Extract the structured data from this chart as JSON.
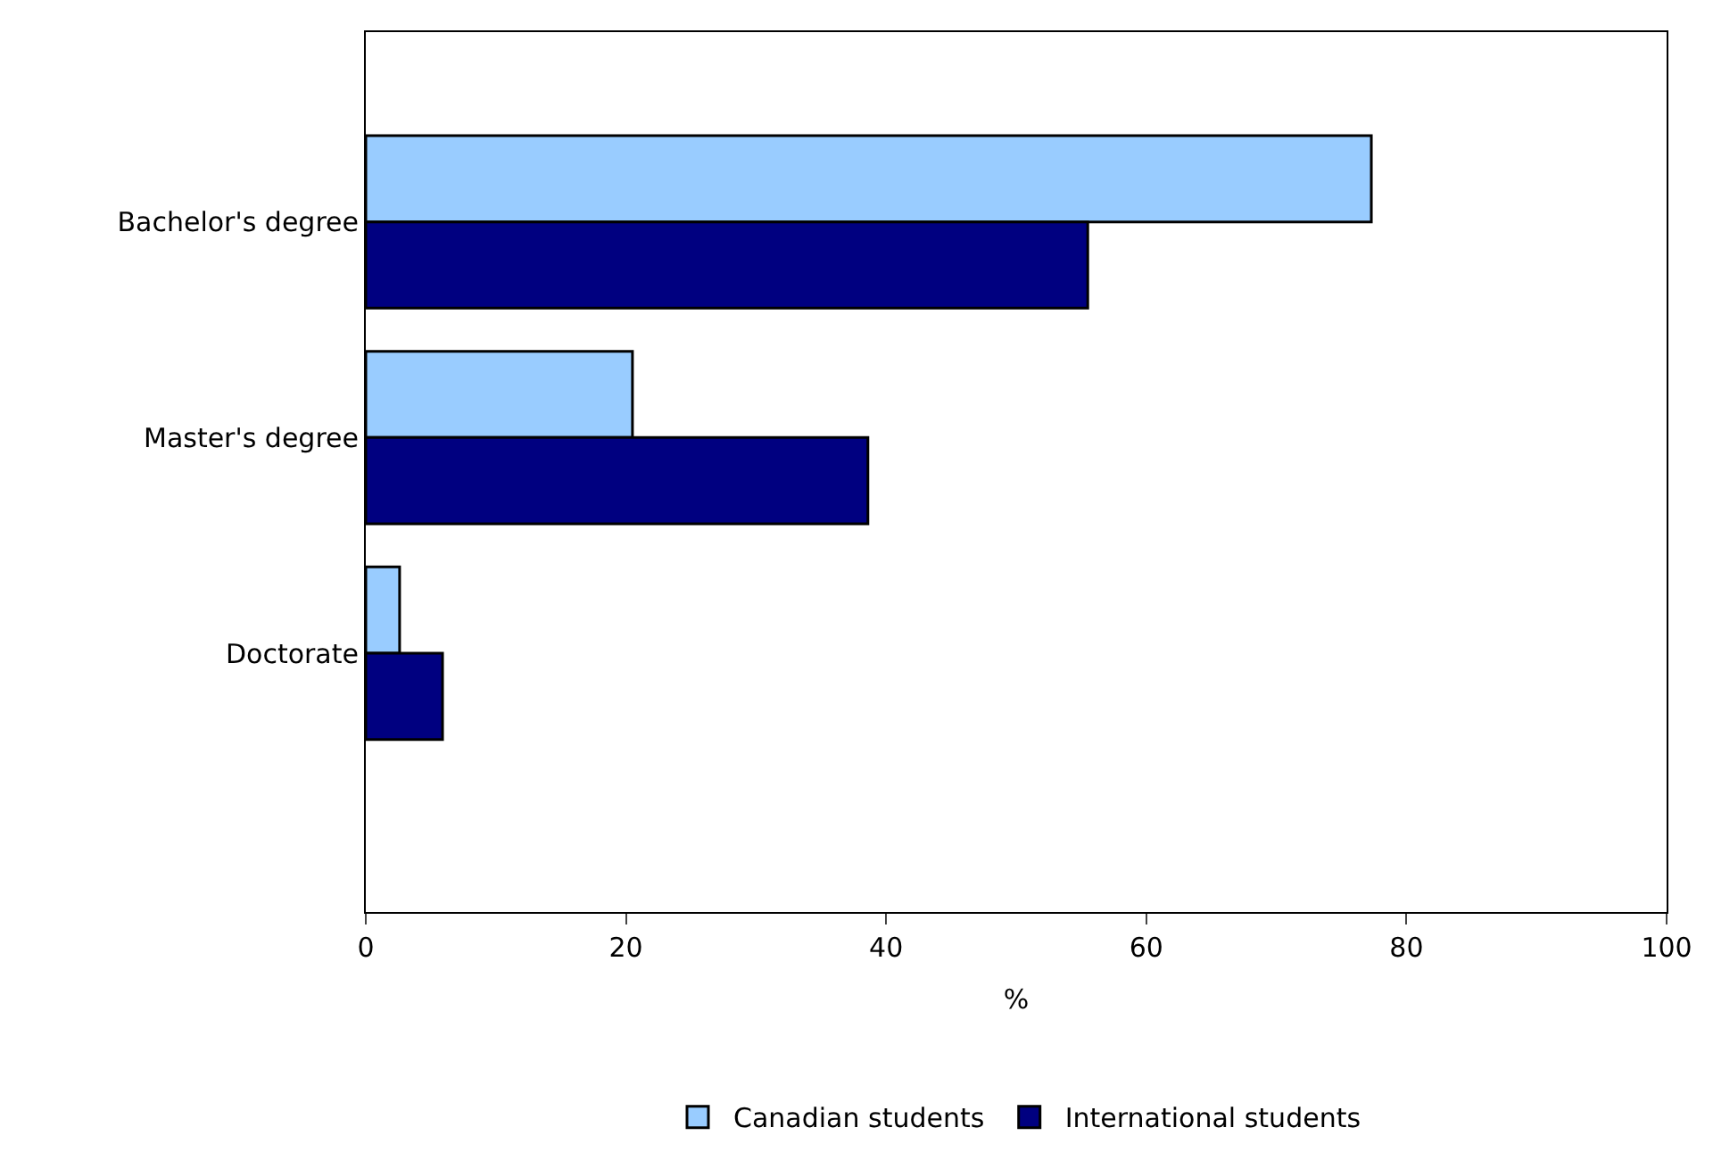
{
  "chart_data": {
    "type": "bar",
    "orientation": "horizontal",
    "xlabel": "%",
    "categories": [
      "Bachelor's degree",
      "Master's degree",
      "Doctorate"
    ],
    "series": [
      {
        "name": "Canadian students",
        "color": "#99ccff",
        "values": [
          77.3,
          20.5,
          2.6
        ]
      },
      {
        "name": "International students",
        "color": "#000080",
        "values": [
          55.5,
          38.6,
          5.9
        ]
      }
    ],
    "xlim": [
      0,
      100
    ],
    "xticks": [
      0,
      20,
      40,
      60,
      80,
      100
    ],
    "legend": "bottom"
  }
}
